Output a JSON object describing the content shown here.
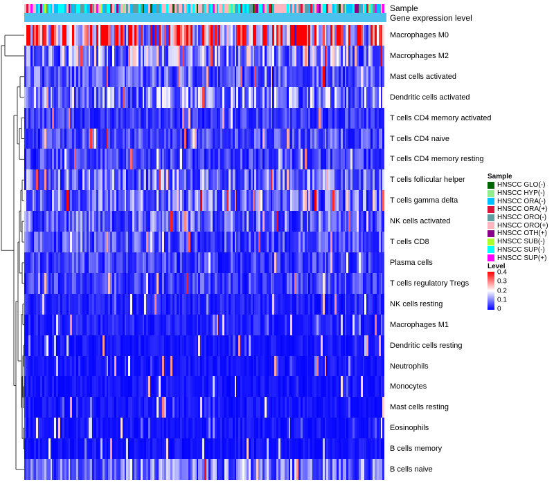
{
  "chart_data": {
    "type": "heatmap",
    "title": "",
    "annotation_rows": [
      "Sample",
      "Gene expression level"
    ],
    "row_labels": [
      "Macrophages M0",
      "Macrophages M2",
      "Mast cells activated",
      "Dendritic cells activated",
      "T cells CD4 memory activated",
      "T cells CD4 naive",
      "T cells CD4 memory resting",
      "T cells follicular helper",
      "T cells gamma delta",
      "NK cells activated",
      "T cells CD8",
      "Plasma cells",
      "T cells regulatory  Tregs",
      "NK cells resting",
      "Macrophages M1",
      "Dendritic cells resting",
      "Neutrophils",
      "Monocytes",
      "Mast cells resting",
      "Eosinophils",
      "B cells memory",
      "B cells naive"
    ],
    "row_mean_levels": [
      0.33,
      0.14,
      0.08,
      0.12,
      0.05,
      0.07,
      0.06,
      0.1,
      0.1,
      0.09,
      0.07,
      0.06,
      0.06,
      0.03,
      0.03,
      0.02,
      0.02,
      0.02,
      0.02,
      0.02,
      0.02,
      0.1
    ],
    "n_samples": 180,
    "color_scale": {
      "min": 0,
      "max": 0.4,
      "low": "#0000ff",
      "mid": "#ffffff",
      "high": "#ff0000",
      "ticks": [
        "0.4",
        "0.3",
        "0.2",
        "0.1",
        "0"
      ]
    },
    "gene_expression_level_color": "#4cc1ee",
    "sample_groups": [
      {
        "name": "HNSCC GLO(-)",
        "color": "#006400"
      },
      {
        "name": "HNSCC HYP(-)",
        "color": "#90ee90"
      },
      {
        "name": "HNSCC ORA(-)",
        "color": "#00bfff"
      },
      {
        "name": "HNSCC ORA(+)",
        "color": "#dc143c"
      },
      {
        "name": "HNSCC ORO(-)",
        "color": "#5f9ea0"
      },
      {
        "name": "HNSCC ORO(+)",
        "color": "#ffb6c1"
      },
      {
        "name": "HNSCC OTH(+)",
        "color": "#8b008b"
      },
      {
        "name": "HNSCC SUB(-)",
        "color": "#adff2f"
      },
      {
        "name": "HNSCC SUP(-)",
        "color": "#00ffff"
      },
      {
        "name": "HNSCC SUP(+)",
        "color": "#ff00ff"
      }
    ],
    "legend": {
      "sample_title": "Sample",
      "level_title": "Level"
    }
  }
}
